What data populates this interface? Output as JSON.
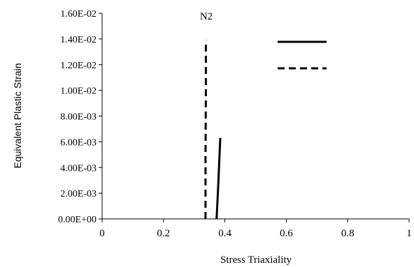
{
  "chart_data": {
    "type": "line",
    "title": "N2",
    "xlabel": "Stress Triaxiality",
    "ylabel": "Equivalent Plastic Strain",
    "xlim": [
      0,
      1
    ],
    "ylim": [
      0,
      0.016
    ],
    "x_ticks": [
      "0",
      "0.2",
      "0.4",
      "0.6",
      "0.8",
      "1"
    ],
    "y_ticks": [
      "0.00E+00",
      "2.00E-03",
      "4.00E-03",
      "6.00E-03",
      "8.00E-03",
      "1.00E-02",
      "1.20E-02",
      "1.40E-02",
      "1.60E-02"
    ],
    "grid": false,
    "legend_position": "top-right",
    "series": [
      {
        "style": "solid",
        "color": "#000000",
        "x": [
          0.373,
          0.376,
          0.379,
          0.382,
          0.385
        ],
        "y": [
          0.0,
          0.0015,
          0.003,
          0.0047,
          0.0063
        ]
      },
      {
        "style": "dashed",
        "color": "#000000",
        "x": [
          0.337,
          0.337,
          0.338,
          0.338
        ],
        "y": [
          0.0,
          0.005,
          0.01,
          0.0139
        ]
      }
    ]
  }
}
